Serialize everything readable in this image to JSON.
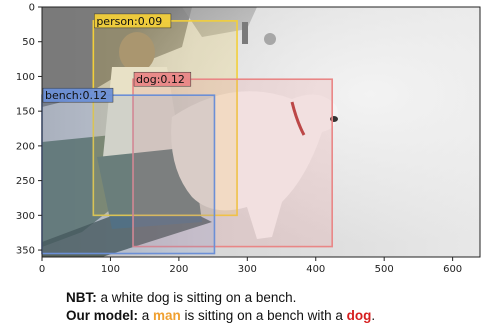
{
  "image": {
    "x_ticks": [
      0,
      100,
      200,
      300,
      400,
      500,
      600
    ],
    "y_ticks": [
      0,
      50,
      100,
      150,
      200,
      250,
      300,
      350
    ],
    "image_width_units": 640,
    "image_height_units": 360,
    "scene": "grayscale photo of a person sitting on a bench with a large white dog on a park path"
  },
  "detections": [
    {
      "name": "person",
      "label": "person:0.09",
      "x0": 75,
      "y0": 20,
      "x1": 285,
      "y1": 300,
      "color": "#f2cf3a"
    },
    {
      "name": "dog",
      "label": "dog:0.12",
      "x0": 133,
      "y0": 104,
      "x1": 424,
      "y1": 345,
      "color": "#e98686"
    },
    {
      "name": "bench",
      "label": "bench:0.12",
      "x0": 0,
      "y0": 127,
      "x1": 252,
      "y1": 355,
      "color": "#6b8fd6"
    }
  ],
  "captions": {
    "nbt_label": "NBT:",
    "nbt_text": " a white dog is sitting on a bench.",
    "ours_label": "Our model:",
    "ours_text_1": " a ",
    "ours_man": "man",
    "ours_text_2": " is sitting on a bench with a ",
    "ours_dog": "dog",
    "ours_text_3": "."
  }
}
